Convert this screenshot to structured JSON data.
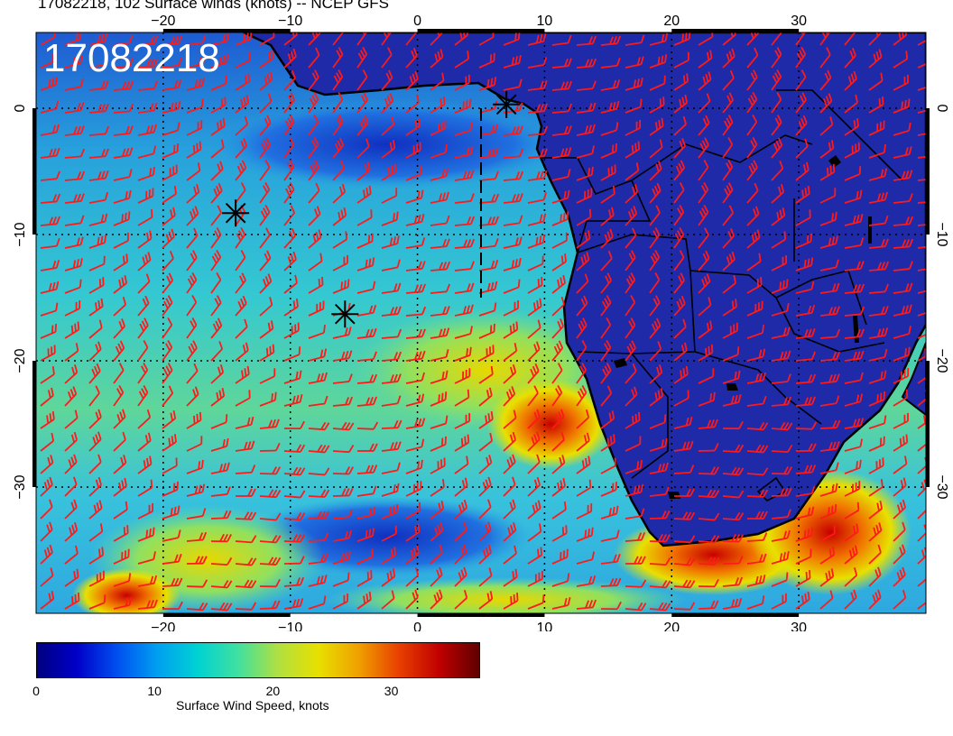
{
  "title": "17082218, 102 Surface winds (knots) -- NCEP GFS",
  "stamp": "17082218",
  "axes": {
    "lon_ticks": [
      {
        "value": -20,
        "label": "−20"
      },
      {
        "value": -10,
        "label": "−10"
      },
      {
        "value": 0,
        "label": "0"
      },
      {
        "value": 10,
        "label": "10"
      },
      {
        "value": 20,
        "label": "20"
      },
      {
        "value": 30,
        "label": "30"
      }
    ],
    "lat_ticks": [
      {
        "value": 0,
        "label": "0"
      },
      {
        "value": -10,
        "label": "−10"
      },
      {
        "value": -20,
        "label": "−20"
      },
      {
        "value": -30,
        "label": "−30"
      }
    ],
    "lon_range": [
      -30,
      40
    ],
    "lat_range": [
      -40,
      6
    ],
    "gridlines": "dotted"
  },
  "markers": [
    {
      "lon": 7,
      "lat": 0.3
    },
    {
      "lon": -14.3,
      "lat": -8.3
    },
    {
      "lon": -5.7,
      "lat": -16.3
    }
  ],
  "track": [
    [
      5,
      0
    ],
    [
      5,
      -15
    ]
  ],
  "colorbar": {
    "label": "Surface Wind Speed, knots",
    "ticks": [
      {
        "value": 0,
        "label": "0"
      },
      {
        "value": 10,
        "label": "10"
      },
      {
        "value": 20,
        "label": "20"
      },
      {
        "value": 30,
        "label": "30"
      }
    ],
    "range": [
      0,
      37.5
    ],
    "colors": [
      "#000080",
      "#0000c8",
      "#0050f0",
      "#00a0f0",
      "#00d2d2",
      "#40e0a0",
      "#b0e040",
      "#e8e000",
      "#f0a000",
      "#e84000",
      "#c00000",
      "#600000"
    ]
  },
  "barb_color": "#ff1a1a",
  "land_color": "#1e2aa8"
}
